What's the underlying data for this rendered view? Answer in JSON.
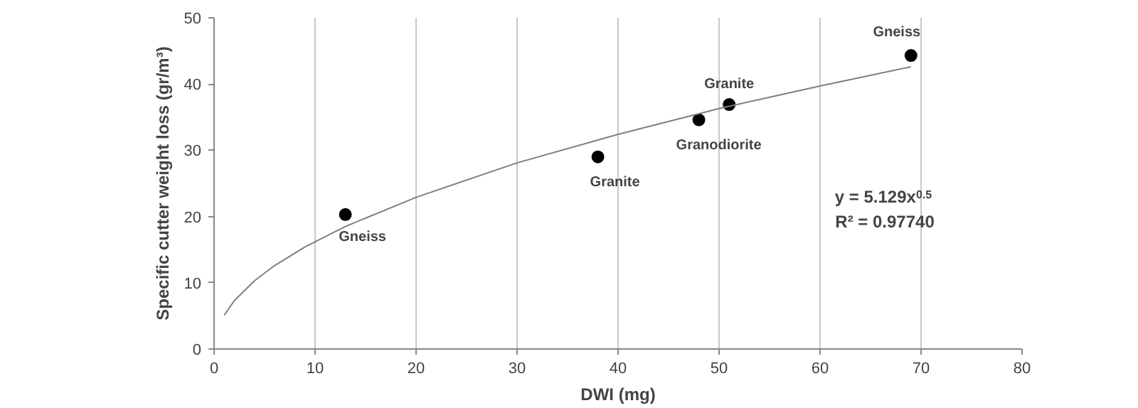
{
  "chart_data": {
    "type": "scatter",
    "xlabel": "DWI (mg)",
    "ylabel": "Specific cutter weight loss (gr/m³)",
    "xlim": [
      0,
      80
    ],
    "ylim": [
      0,
      50
    ],
    "xticks": [
      0,
      10,
      20,
      30,
      40,
      50,
      60,
      70,
      80
    ],
    "yticks": [
      0,
      10,
      20,
      30,
      40,
      50
    ],
    "grid": "x",
    "marker": "circle",
    "series": [
      {
        "color": "#000000",
        "x": [
          13,
          38,
          48,
          51,
          69
        ],
        "values": [
          20.3,
          29,
          34.6,
          36.9,
          44.3
        ]
      },
      {
        "type": "line",
        "color": "#7f7f7f",
        "marker": "none",
        "x": [
          1,
          2,
          4,
          6,
          9,
          13,
          20,
          30,
          40,
          50,
          60,
          69
        ],
        "values": [
          5.1,
          7.3,
          10.3,
          12.6,
          15.4,
          18.5,
          22.9,
          28.1,
          32.4,
          36.3,
          39.7,
          42.6
        ]
      }
    ],
    "annotations": [
      {
        "text": "Gneiss",
        "x": 13,
        "y": 20.3
      },
      {
        "text": "Granite",
        "x": 38,
        "y": 29
      },
      {
        "text": "Granodiorite",
        "x": 48,
        "y": 34.6
      },
      {
        "text": "Granite",
        "x": 51,
        "y": 36.9
      },
      {
        "text": "Gneiss",
        "x": 69,
        "y": 44.3
      },
      "y = 5.129x$^{0.5}$",
      "R² = 0.97740"
    ]
  }
}
